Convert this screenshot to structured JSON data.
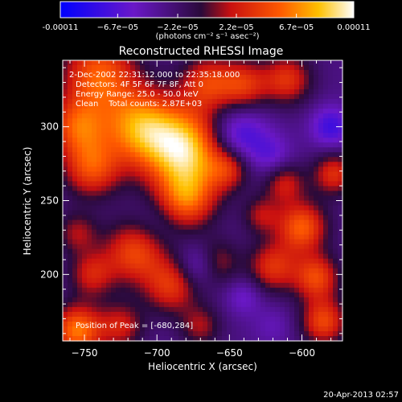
{
  "chart_data": {
    "type": "heatmap",
    "title": "Reconstructed RHESSI Image",
    "xlabel": "Heliocentric X (arcsec)",
    "ylabel": "Heliocentric Y (arcsec)",
    "xlim": [
      -765,
      -572
    ],
    "ylim": [
      155,
      345
    ],
    "xticks": [
      -750,
      -700,
      -650,
      -600
    ],
    "yticks": [
      200,
      250,
      300
    ],
    "colorbar": {
      "range": [
        -0.00011,
        0.00011
      ],
      "tick_values": [
        -0.00011,
        -6.7e-05,
        -2.2e-05,
        2.2e-05,
        6.7e-05,
        0.00011
      ],
      "tick_labels": [
        "-0.00011",
        "−6.7e−05",
        "−2.2e−05",
        "2.2e−05",
        "6.7e−05",
        "0.00011"
      ],
      "units_label": "(photons cm⁻² s⁻¹ asec⁻²)",
      "stops": [
        {
          "v": 0.0,
          "color": "#0000ff"
        },
        {
          "v": 0.25,
          "color": "#6a18c8"
        },
        {
          "v": 0.48,
          "color": "#2a0a3a"
        },
        {
          "v": 0.58,
          "color": "#c81010"
        },
        {
          "v": 0.75,
          "color": "#ff5a00"
        },
        {
          "v": 0.88,
          "color": "#ffc000"
        },
        {
          "v": 1.0,
          "color": "#ffffff"
        }
      ]
    },
    "annotations": {
      "date": "2-Dec-2002 22:31:12.000 to 22:35:18.000",
      "detectors": "Detectors: 4F 5F 6F 7F 8F, Att 0",
      "energy": "Energy Range: 25.0 - 50.0 keV",
      "clean": "Clean    Total counts: 2.87E+03",
      "peak": "Position of Peak = [-680,284]"
    },
    "sources": [
      {
        "x": -680,
        "y": 284,
        "r": 20,
        "v": 0.00011
      },
      {
        "x": -712,
        "y": 300,
        "r": 18,
        "v": 8e-05
      },
      {
        "x": -740,
        "y": 335,
        "r": 18,
        "v": 7e-05
      },
      {
        "x": -755,
        "y": 300,
        "r": 14,
        "v": 6e-05
      },
      {
        "x": -745,
        "y": 272,
        "r": 14,
        "v": 6e-05
      },
      {
        "x": -680,
        "y": 250,
        "r": 14,
        "v": 6e-05
      },
      {
        "x": -715,
        "y": 215,
        "r": 15,
        "v": 6e-05
      },
      {
        "x": -665,
        "y": 330,
        "r": 13,
        "v": 5e-05
      },
      {
        "x": -640,
        "y": 328,
        "r": 12,
        "v": 5e-05
      },
      {
        "x": -610,
        "y": 332,
        "r": 12,
        "v": 5e-05
      },
      {
        "x": -600,
        "y": 232,
        "r": 12,
        "v": 7e-05
      },
      {
        "x": -578,
        "y": 268,
        "r": 10,
        "v": 5e-05
      },
      {
        "x": -612,
        "y": 262,
        "r": 10,
        "v": 4e-05
      },
      {
        "x": -650,
        "y": 272,
        "r": 10,
        "v": 4e-05
      },
      {
        "x": -690,
        "y": 192,
        "r": 13,
        "v": 5e-05
      },
      {
        "x": -660,
        "y": 208,
        "r": 11,
        "v": 4e-05
      },
      {
        "x": -620,
        "y": 205,
        "r": 12,
        "v": 5e-05
      },
      {
        "x": -590,
        "y": 198,
        "r": 11,
        "v": 6e-05
      },
      {
        "x": -585,
        "y": 168,
        "r": 11,
        "v": 6e-05
      },
      {
        "x": -755,
        "y": 162,
        "r": 12,
        "v": 8e-05
      },
      {
        "x": -745,
        "y": 200,
        "r": 11,
        "v": 4e-05
      },
      {
        "x": -725,
        "y": 165,
        "r": 11,
        "v": 4e-05
      },
      {
        "x": -670,
        "y": 165,
        "r": 10,
        "v": 3e-05
      },
      {
        "x": -628,
        "y": 240,
        "r": 9,
        "v": 3e-05
      },
      {
        "x": -755,
        "y": 228,
        "r": 10,
        "v": 3e-05
      },
      {
        "x": -645,
        "y": 293,
        "r": 15,
        "v": -7e-05
      },
      {
        "x": -670,
        "y": 206,
        "r": 10,
        "v": -6e-05
      },
      {
        "x": -620,
        "y": 280,
        "r": 10,
        "v": -4e-05
      },
      {
        "x": -580,
        "y": 300,
        "r": 10,
        "v": -6e-05
      },
      {
        "x": -640,
        "y": 185,
        "r": 9,
        "v": -4e-05
      },
      {
        "x": -700,
        "y": 235,
        "r": 12,
        "v": -3e-05
      },
      {
        "x": -620,
        "y": 165,
        "r": 10,
        "v": -3e-05
      }
    ]
  },
  "footer": {
    "timestamp": "20-Apr-2013 02:57"
  }
}
